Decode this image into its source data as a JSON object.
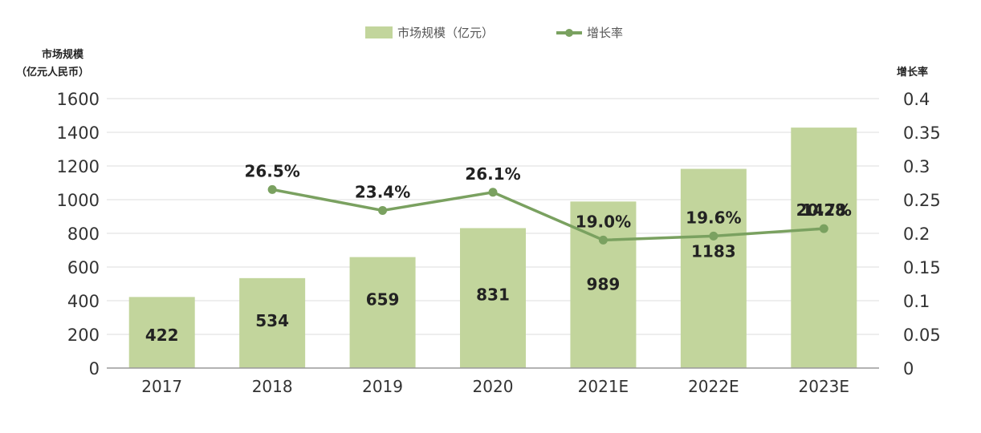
{
  "chart_data": {
    "type": "bar",
    "categories": [
      "2017",
      "2018",
      "2019",
      "2020",
      "2021E",
      "2022E",
      "2023E"
    ],
    "series": [
      {
        "name": "市场规模（亿元）",
        "type": "bar",
        "axis": "left",
        "values": [
          422,
          534,
          659,
          831,
          989,
          1183,
          1428
        ],
        "labels": [
          "422",
          "534",
          "659",
          "831",
          "989",
          "1183",
          "1428"
        ],
        "color": "#c2d59c"
      },
      {
        "name": "增长率",
        "type": "line",
        "axis": "right",
        "values": [
          null,
          0.265,
          0.234,
          0.261,
          0.19,
          0.196,
          0.207
        ],
        "labels": [
          "",
          "26.5%",
          "23.4%",
          "26.1%",
          "19.0%",
          "19.6%",
          "20.7%"
        ],
        "color": "#7aa160"
      }
    ],
    "ylabel_left": [
      "市场规模",
      "（亿元人民币）"
    ],
    "ylabel_right": "增长率",
    "ylim_left": [
      0,
      1600
    ],
    "ylim_right": [
      0,
      0.4
    ],
    "yticks_left": [
      "0",
      "200",
      "400",
      "600",
      "800",
      "1000",
      "1200",
      "1400",
      "1600"
    ],
    "yticks_right": [
      "0",
      "0.05",
      "0.1",
      "0.15",
      "0.2",
      "0.25",
      "0.3",
      "0.35",
      "0.4"
    ],
    "grid": true,
    "legend_position": "top-center",
    "colors": {
      "grid": "#dcdcdc",
      "axis": "#9a9a9a"
    }
  }
}
